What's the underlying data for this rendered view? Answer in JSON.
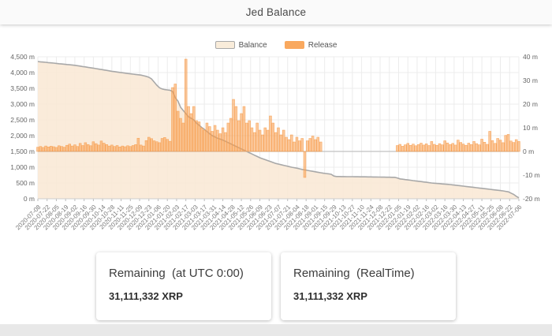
{
  "header": {
    "title": "Jed Balance"
  },
  "legend": {
    "balance_label": "Balance",
    "release_label": "Release"
  },
  "colors": {
    "balance_area": "#f9e9d6",
    "balance_line": "#a8a8a8",
    "release_bar": "#f89d4d",
    "grid": "#ececec",
    "zero_line": "#c2c2c2",
    "axis_text": "#666666",
    "header_bg": "#fafafa",
    "footer_bg": "#e8e8e8"
  },
  "chart_data": {
    "type": "mixed",
    "title": "Jed Balance",
    "grid": true,
    "legend_position": "top",
    "x": {
      "start_date": "2020-07-08",
      "end_date": "2022-07-06",
      "step_days": 4,
      "n_points": 183,
      "tick_labels": [
        "2020-07-08",
        "2020-07-22",
        "2020-08-05",
        "2020-08-19",
        "2020-09-02",
        "2020-09-16",
        "2020-09-30",
        "2020-10-14",
        "2020-10-28",
        "2020-11-11",
        "2020-11-25",
        "2020-12-09",
        "2020-12-23",
        "2021-01-06",
        "2021-01-20",
        "2021-02-03",
        "2021-02-17",
        "2021-03-03",
        "2021-03-17",
        "2021-03-31",
        "2021-04-14",
        "2021-04-28",
        "2021-05-12",
        "2021-05-26",
        "2021-06-09",
        "2021-06-23",
        "2021-07-07",
        "2021-07-21",
        "2021-08-04",
        "2021-08-18",
        "2021-09-01",
        "2021-09-15",
        "2021-09-29",
        "2021-10-13",
        "2021-10-27",
        "2021-11-10",
        "2021-11-24",
        "2021-12-08",
        "2021-12-22",
        "2022-01-05",
        "2022-01-19",
        "2022-02-02",
        "2022-02-16",
        "2022-03-02",
        "2022-03-16",
        "2022-03-30",
        "2022-04-13",
        "2022-04-27",
        "2022-05-11",
        "2022-05-25",
        "2022-06-08",
        "2022-06-22",
        "2022-07-06"
      ]
    },
    "y_left": {
      "min": 0,
      "max": 4500,
      "step": 500,
      "unit": "m (millions XRP)",
      "tick_labels": [
        "4,500 m",
        "4,000 m",
        "3,500 m",
        "3,000 m",
        "2,500 m",
        "2,000 m",
        "1,500 m",
        "1,000 m",
        "500 m",
        "0 m"
      ]
    },
    "y_right": {
      "min": -20,
      "max": 40,
      "step": 10,
      "unit": "m (millions XRP)",
      "tick_labels": [
        "40 m",
        "30 m",
        "20 m",
        "10 m",
        "0 m",
        "-10 m",
        "-20 m"
      ]
    },
    "series": [
      {
        "name": "Balance",
        "type": "area",
        "axis": "left",
        "color": "#f9e9d6",
        "line_color": "#a8a8a8",
        "values": [
          4350,
          4341,
          4333,
          4324,
          4316,
          4307,
          4299,
          4290,
          4281,
          4273,
          4264,
          4256,
          4247,
          4239,
          4230,
          4217,
          4204,
          4191,
          4179,
          4166,
          4153,
          4140,
          4126,
          4111,
          4097,
          4083,
          4069,
          4054,
          4040,
          4029,
          4017,
          4006,
          3994,
          3983,
          3971,
          3960,
          3950,
          3940,
          3930,
          3920,
          3900,
          3880,
          3850,
          3800,
          3700,
          3600,
          3520,
          3480,
          3460,
          3450,
          3440,
          3400,
          3200,
          3100,
          2900,
          2800,
          2700,
          2600,
          2550,
          2500,
          2400,
          2330,
          2260,
          2200,
          2130,
          2060,
          2000,
          1960,
          1920,
          1890,
          1860,
          1820,
          1780,
          1740,
          1700,
          1660,
          1620,
          1580,
          1540,
          1500,
          1460,
          1420,
          1380,
          1340,
          1300,
          1270,
          1240,
          1210,
          1180,
          1150,
          1120,
          1100,
          1080,
          1060,
          1040,
          1020,
          1000,
          985,
          970,
          950,
          930,
          915,
          900,
          885,
          870,
          855,
          840,
          825,
          810,
          800,
          790,
          775,
          720,
          705,
          704,
          703,
          702,
          701,
          700,
          699,
          698,
          697,
          696,
          695,
          694,
          693,
          692,
          691,
          690,
          688,
          686,
          684,
          683,
          682,
          681,
          680,
          660,
          630,
          619,
          608,
          598,
          587,
          576,
          565,
          554,
          544,
          533,
          522,
          511,
          500,
          493,
          486,
          479,
          471,
          464,
          457,
          450,
          440,
          430,
          420,
          410,
          400,
          390,
          380,
          370,
          360,
          350,
          340,
          330,
          320,
          310,
          300,
          290,
          280,
          270,
          260,
          250,
          235,
          220,
          180,
          140,
          80,
          31
        ]
      },
      {
        "name": "Release",
        "type": "bar",
        "axis": "right",
        "color": "#f89d4d",
        "values": [
          1.8,
          2.1,
          1.7,
          2.3,
          1.9,
          2.2,
          2,
          1.7,
          2.4,
          2.1,
          1.8,
          2.6,
          3.1,
          2.3,
          2.8,
          2.1,
          3.4,
          2.5,
          3.7,
          2.9,
          2.4,
          4.1,
          3.3,
          2.7,
          4.4,
          3.5,
          2.9,
          2.3,
          2.7,
          2.1,
          2.5,
          1.9,
          2.3,
          2,
          2.4,
          2.1,
          2.5,
          2.9,
          5.6,
          2.7,
          2.3,
          4.6,
          6,
          5.4,
          4.5,
          4.1,
          3.7,
          5.5,
          5.9,
          5.1,
          4.3,
          27,
          28.5,
          17,
          14,
          12,
          39,
          19,
          16,
          19,
          13,
          12.5,
          10,
          9,
          12,
          10.5,
          8.5,
          11,
          9,
          7.5,
          10,
          8,
          12,
          14,
          22,
          19,
          13,
          16,
          19,
          12,
          13,
          10,
          8,
          12,
          9,
          7,
          10,
          9,
          15,
          12,
          8,
          10,
          7,
          9,
          6,
          5,
          7,
          4,
          6,
          4.5,
          5.5,
          -11,
          4.5,
          5.5,
          6.5,
          5,
          6,
          4,
          0,
          0,
          0,
          0,
          0,
          0,
          0,
          0,
          0,
          0,
          0,
          0,
          0,
          0,
          0,
          0,
          0,
          0,
          0,
          0,
          0,
          0,
          0,
          0,
          0,
          0,
          0,
          0,
          2.5,
          3,
          2.2,
          2.8,
          3.4,
          2.6,
          3.1,
          2.4,
          2.9,
          3.5,
          2.7,
          3.2,
          2.5,
          4.2,
          3,
          2.6,
          3.3,
          2.8,
          4.5,
          3.6,
          2.9,
          3.4,
          2.7,
          4.8,
          3.8,
          3.1,
          2.6,
          3.5,
          2.9,
          4.2,
          3.3,
          2.8,
          5.2,
          3.9,
          3,
          8.5,
          4.6,
          3.4,
          5.5,
          4.8,
          3.7,
          6.8,
          7.2,
          4.4,
          3.8,
          5,
          4.2
        ]
      }
    ]
  },
  "cards": [
    {
      "title": "Remaining  (at UTC 0:00)",
      "value": "31,111,332 XRP"
    },
    {
      "title": "Remaining  (RealTime)",
      "value": "31,111,332 XRP"
    }
  ]
}
